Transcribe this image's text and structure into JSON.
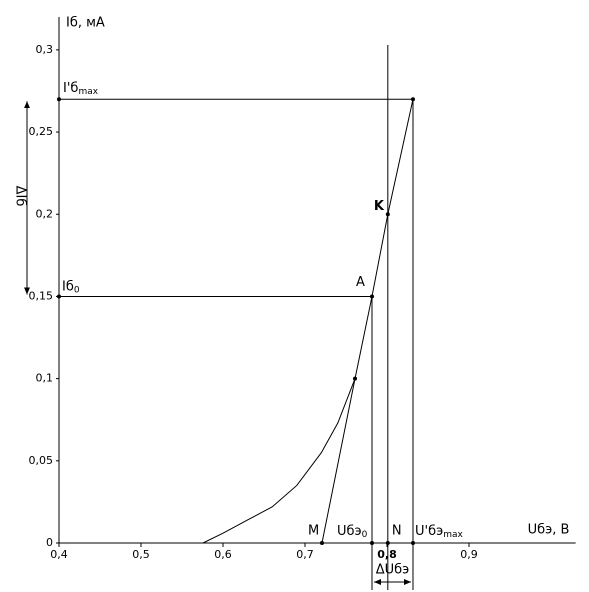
{
  "chart_data": {
    "type": "line",
    "xlabel": "Uбэ, В",
    "ylabel": "Iб, мА",
    "xlim": [
      0.4,
      1.03
    ],
    "ylim": [
      0,
      0.32
    ],
    "xticks": [
      {
        "value": 0.4,
        "label": "0,4"
      },
      {
        "value": 0.5,
        "label": "0,5"
      },
      {
        "value": 0.6,
        "label": "0,6"
      },
      {
        "value": 0.7,
        "label": "0,7"
      },
      {
        "value": 0.8,
        "label": "0,8"
      },
      {
        "value": 0.9,
        "label": "0,9"
      }
    ],
    "yticks": [
      0,
      {
        "value": 0.05,
        "label": "0,05"
      },
      {
        "value": 0.1,
        "label": "0,1"
      },
      {
        "value": 0.15,
        "label": "0,15"
      },
      {
        "value": 0.2,
        "label": "0,2"
      },
      {
        "value": 0.25,
        "label": "0,25"
      },
      {
        "value": 0.3,
        "label": "0,3"
      }
    ],
    "series": [
      {
        "color": "#000000",
        "x": [
          0.5756,
          0.6,
          0.63,
          0.66,
          0.69,
          0.72,
          0.74,
          0.761
        ],
        "values": [
          0,
          0.006,
          0.014,
          0.022,
          0.035,
          0.055,
          0.073,
          0.1
        ]
      },
      {
        "color": "#000000",
        "x": [
          0.7207,
          0.761,
          0.7817,
          0.801,
          0.8317
        ],
        "values": [
          0,
          0.1,
          0.15,
          0.2,
          0.27
        ]
      }
    ],
    "annotations": {
      "ib_max": {
        "text": "I'б",
        "sub": "max"
      },
      "ib0": {
        "text": "Iб",
        "sub": "0"
      },
      "a": "A",
      "k": "K",
      "m": "M",
      "n": "N",
      "ube0": {
        "text": "Uбэ",
        "sub": "0"
      },
      "ube_max": {
        "text": "U'бэ",
        "sub": "max"
      },
      "delta_u": "ΔUбэ",
      "delta_i": "ΔIб"
    }
  }
}
